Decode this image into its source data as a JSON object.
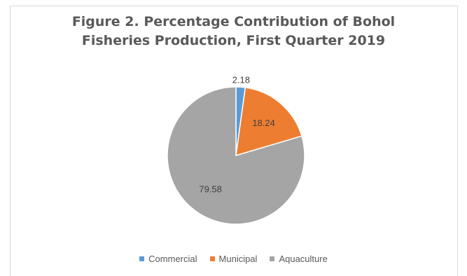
{
  "chart_data": {
    "type": "pie",
    "title_lines": [
      "Figure 2.  Percentage Contribution of Bohol",
      "Fisheries Production, First Quarter 2019"
    ],
    "series": [
      {
        "name": "Commercial",
        "value": 2.18,
        "label": "2.18",
        "color": "#5b9bd5"
      },
      {
        "name": "Municipal",
        "value": 18.24,
        "label": "18.24",
        "color": "#ed7d31"
      },
      {
        "name": "Aquaculture",
        "value": 79.58,
        "label": "79.58",
        "color": "#a5a5a5"
      }
    ],
    "legend": {
      "placement": "bottom",
      "items": [
        "Commercial",
        "Municipal",
        "Aquaculture"
      ]
    },
    "start_angle_deg": 0,
    "direction": "clockwise"
  }
}
